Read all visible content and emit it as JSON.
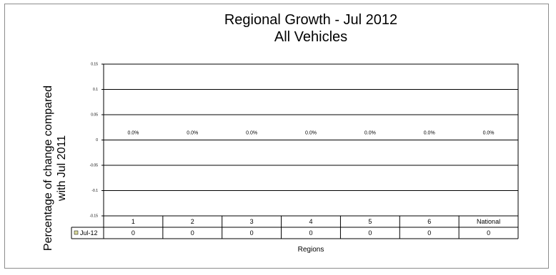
{
  "chart_data": {
    "type": "bar",
    "title": "Regional Growth - Jul 2012",
    "subtitle": "All Vehicles",
    "ylabel_lines": [
      "Percentage of change compared",
      "with Jul 2011"
    ],
    "xlabel": "Regions",
    "categories": [
      "1",
      "2",
      "3",
      "4",
      "5",
      "6",
      "National"
    ],
    "series": [
      {
        "name": "Jul-12",
        "values": [
          0,
          0,
          0,
          0,
          0,
          0,
          0
        ],
        "data_labels": [
          "0.0%",
          "0.0%",
          "0.0%",
          "0.0%",
          "0.0%",
          "0.0%",
          "0.0%"
        ],
        "table_values": [
          "0",
          "0",
          "0",
          "0",
          "0",
          "0",
          "0"
        ],
        "color": "#d9d99c"
      }
    ],
    "ylim": [
      -0.15,
      0.15
    ],
    "yticks": [
      0.15,
      0.1,
      0.05,
      0,
      -0.05,
      -0.1,
      -0.15
    ],
    "ytick_labels": [
      "0.15",
      "0.1",
      "0.05",
      "0",
      "-0.05",
      "-0.1",
      "-0.15"
    ],
    "grid": true,
    "data_table": true,
    "legend": "data-table-left"
  }
}
